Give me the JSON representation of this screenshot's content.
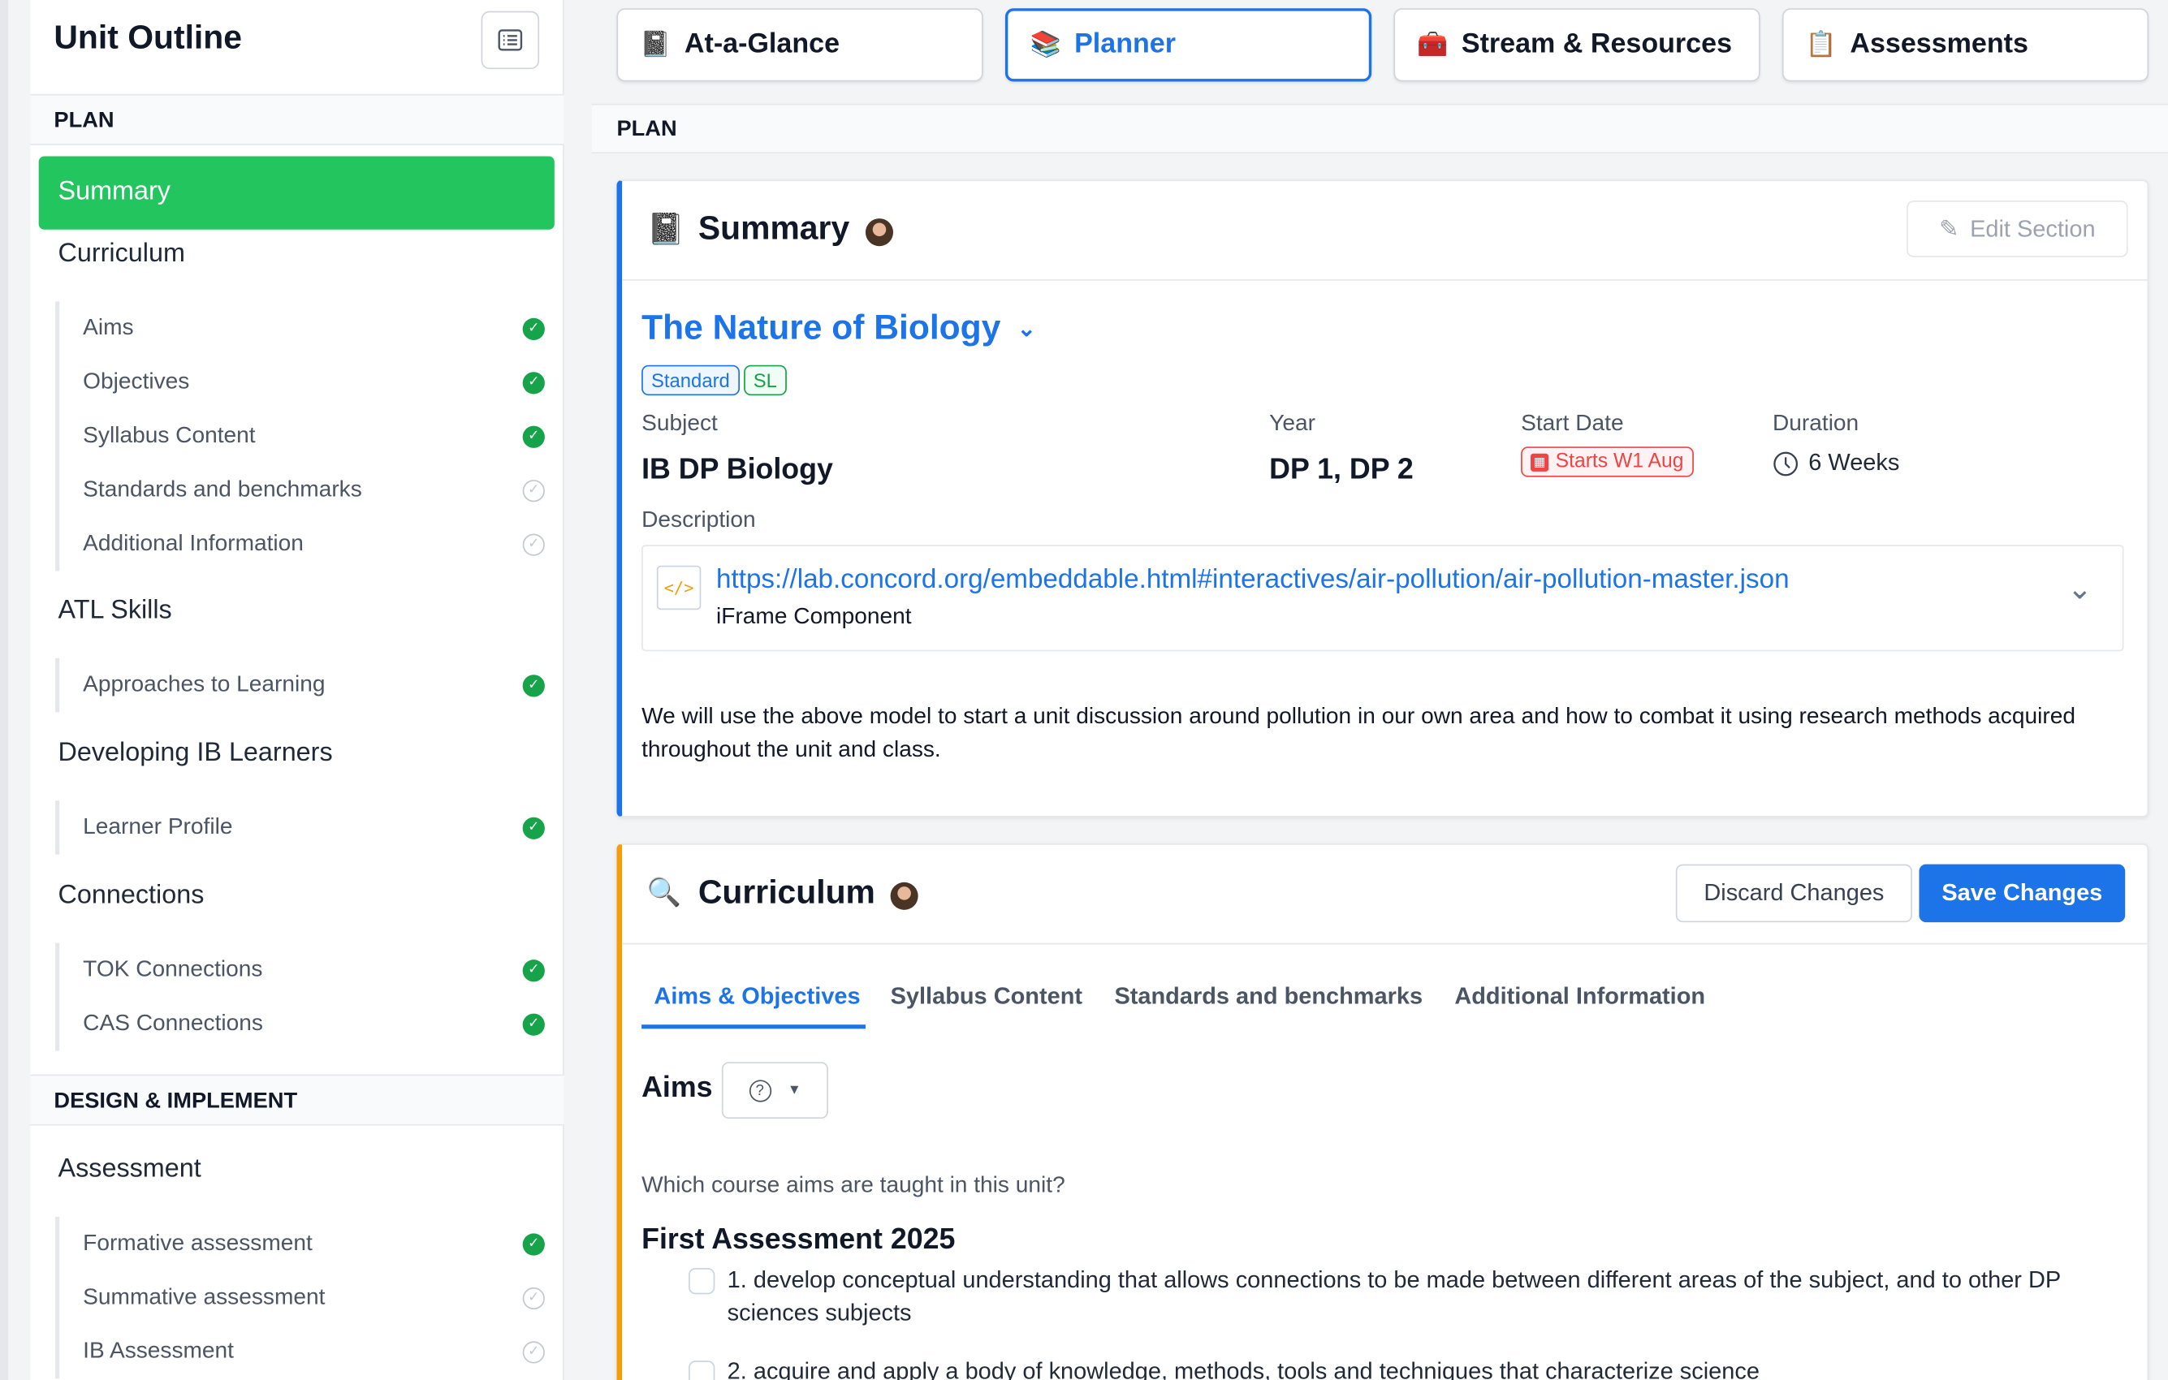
{
  "sidebar": {
    "title": "Unit Outline",
    "outline_icon": "list-icon",
    "sections": [
      {
        "header": "PLAN"
      },
      {
        "header": "DESIGN & IMPLEMENT"
      }
    ],
    "active_item": "Summary",
    "groups": [
      {
        "label": "Curriculum",
        "items": [
          {
            "label": "Aims",
            "complete": true
          },
          {
            "label": "Objectives",
            "complete": true
          },
          {
            "label": "Syllabus Content",
            "complete": true
          },
          {
            "label": "Standards and benchmarks",
            "complete": false
          },
          {
            "label": "Additional Information",
            "complete": false
          }
        ]
      },
      {
        "label": "ATL Skills",
        "items": [
          {
            "label": "Approaches to Learning",
            "complete": true
          }
        ]
      },
      {
        "label": "Developing IB Learners",
        "items": [
          {
            "label": "Learner Profile",
            "complete": true
          }
        ]
      },
      {
        "label": "Connections",
        "items": [
          {
            "label": "TOK Connections",
            "complete": true
          },
          {
            "label": "CAS Connections",
            "complete": true
          }
        ]
      },
      {
        "label": "Assessment",
        "items": [
          {
            "label": "Formative assessment",
            "complete": true
          },
          {
            "label": "Summative assessment",
            "complete": false
          },
          {
            "label": "IB Assessment",
            "complete": false
          }
        ]
      }
    ]
  },
  "tabs": [
    {
      "label": "At-a-Glance",
      "icon": "notebook-icon",
      "active": false
    },
    {
      "label": "Planner",
      "icon": "books-icon",
      "active": true
    },
    {
      "label": "Stream & Resources",
      "icon": "treasure-chest-icon",
      "active": false
    },
    {
      "label": "Assessments",
      "icon": "checklist-icon",
      "active": false
    }
  ],
  "plan_label": "PLAN",
  "summary": {
    "title": "Summary",
    "edit_label": "Edit Section",
    "unit_title": "The Nature of Biology",
    "badges": [
      "Standard",
      "SL"
    ],
    "subject_label": "Subject",
    "subject": "IB DP Biology",
    "year_label": "Year",
    "year": "DP 1, DP 2",
    "start_label": "Start Date",
    "start": "Starts W1 Aug",
    "duration_label": "Duration",
    "duration": "6 Weeks",
    "description_label": "Description",
    "iframe_url": "https://lab.concord.org/embeddable.html#interactives/air-pollution/air-pollution-master.json",
    "iframe_type": "iFrame Component",
    "description": "We will use the above model to start a unit discussion around pollution in our own area and how to combat it using research methods acquired throughout the unit and class."
  },
  "curriculum": {
    "title": "Curriculum",
    "discard_label": "Discard Changes",
    "save_label": "Save Changes",
    "tabs": [
      "Aims & Objectives",
      "Syllabus Content",
      "Standards and benchmarks",
      "Additional Information"
    ],
    "active_tab": "Aims & Objectives",
    "aims_label": "Aims",
    "question": "Which course aims are taught in this unit?",
    "group_title": "First Assessment 2025",
    "aims": [
      {
        "text": "1. develop conceptual understanding that allows connections to be made between different areas of the subject, and to other DP sciences subjects",
        "checked": false
      },
      {
        "text": "2. acquire and apply a body of knowledge, methods, tools and techniques that characterize science",
        "checked": false
      }
    ]
  },
  "colors": {
    "accent": "#1d74e8",
    "active_green": "#22c55e",
    "complete": "#16a34a",
    "curriculum_border": "#f59e0b",
    "start_date": "#ef4444"
  }
}
